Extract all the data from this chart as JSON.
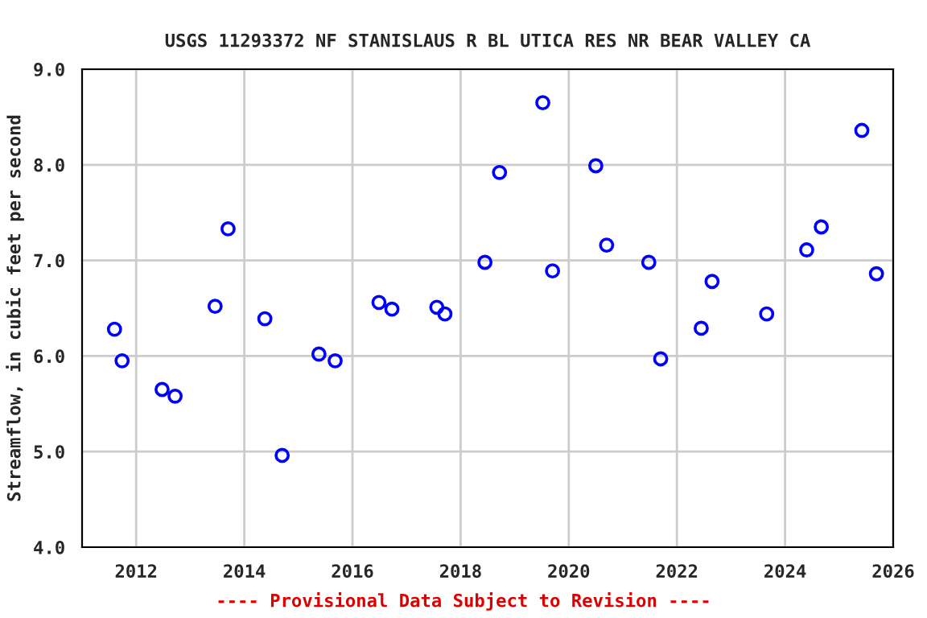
{
  "chart_data": {
    "type": "scatter",
    "title": "USGS 11293372 NF STANISLAUS R BL UTICA RES NR BEAR VALLEY CA",
    "ylabel": "Streamflow, in cubic feet per second",
    "annotations": [
      "---- Provisional Data Subject to Revision ----"
    ],
    "x": [
      2011.6,
      2011.74,
      2012.48,
      2012.72,
      2013.46,
      2013.7,
      2014.38,
      2014.7,
      2015.38,
      2015.68,
      2016.49,
      2016.73,
      2017.56,
      2017.71,
      2018.45,
      2018.72,
      2019.52,
      2019.7,
      2020.5,
      2020.7,
      2021.48,
      2021.7,
      2022.45,
      2022.65,
      2023.66,
      2024.4,
      2024.67,
      2025.42,
      2025.69
    ],
    "series": [
      {
        "color": "#0000ff",
        "values": [
          6.28,
          5.95,
          5.65,
          5.58,
          6.52,
          7.33,
          6.39,
          4.96,
          6.02,
          5.95,
          6.56,
          6.49,
          6.51,
          6.44,
          6.98,
          7.92,
          8.65,
          6.89,
          7.99,
          7.16,
          6.98,
          5.97,
          6.29,
          6.78,
          6.44,
          7.11,
          7.35,
          8.36,
          6.86
        ]
      }
    ],
    "xlim": [
      2011,
      2026
    ],
    "xticks": [
      2012,
      2014,
      2016,
      2018,
      2020,
      2022,
      2024,
      2026
    ],
    "ylim": [
      4.0,
      9.0
    ],
    "yticks": [
      {
        "value": 4,
        "label": "4.0"
      },
      {
        "value": 5,
        "label": "5.0"
      },
      {
        "value": 6,
        "label": "6.0"
      },
      {
        "value": 7,
        "label": "7.0"
      },
      {
        "value": 8,
        "label": "8.0"
      },
      {
        "value": 9,
        "label": "9.0"
      }
    ],
    "grid": true,
    "marker": "circle"
  }
}
